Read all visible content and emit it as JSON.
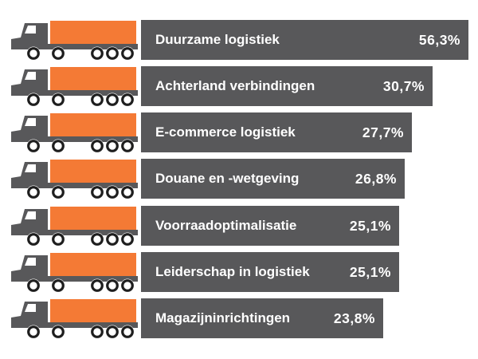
{
  "chart_data": {
    "type": "bar",
    "orientation": "horizontal",
    "title": "",
    "xlabel": "",
    "ylabel": "",
    "categories": [
      "Duurzame logistiek",
      "Achterland verbindingen",
      "E-commerce logistiek",
      "Douane en -wetgeving",
      "Voorraadoptimalisatie",
      "Leiderschap in logistiek",
      "Magazijninrichtingen"
    ],
    "values": [
      56.3,
      30.7,
      27.7,
      26.8,
      25.1,
      25.1,
      23.8
    ],
    "value_labels": [
      "56,3%",
      "30,7%",
      "27,7%",
      "26,8%",
      "25,1%",
      "25,1%",
      "23,8%"
    ],
    "unit": "%",
    "grid": false,
    "legend": "none"
  },
  "colors": {
    "bar": "#58585a",
    "truck_body": "#58585a",
    "container": "#f47a35",
    "label_text": "#ffffff"
  },
  "icons": {
    "row_icon": "truck-icon"
  }
}
